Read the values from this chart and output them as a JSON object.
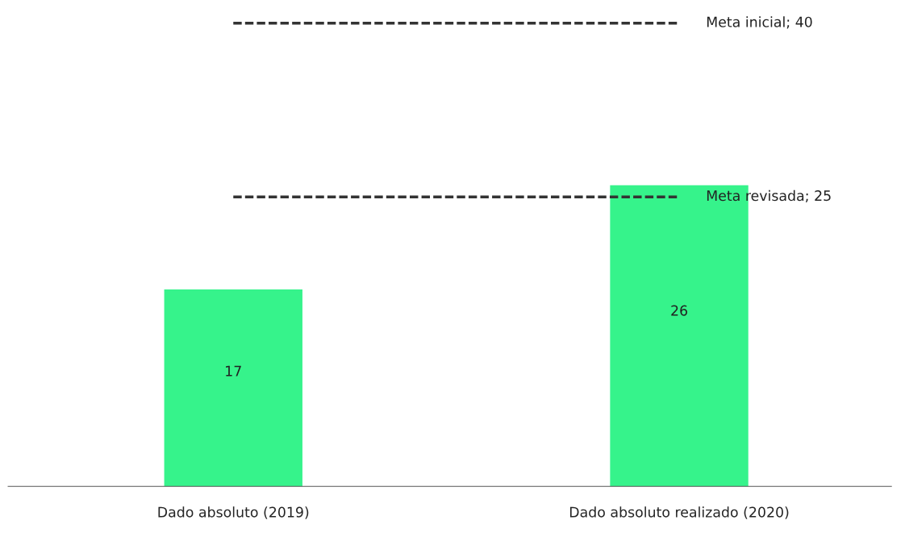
{
  "chart_data": {
    "type": "bar",
    "categories": [
      "Dado absoluto (2019)",
      "Dado absoluto realizado (2020)"
    ],
    "values": [
      17,
      26
    ],
    "color": "#36f38b",
    "tick_labels": "x",
    "grid": false,
    "legend": false,
    "data_labels": true,
    "ref_lines": [
      {
        "axis": "y",
        "value": 40,
        "label": "Meta inicial; 40",
        "color": "#333333",
        "line_style": "dashed"
      },
      {
        "axis": "y",
        "value": 25,
        "label": "Meta revisada; 25",
        "color": "#333333",
        "line_style": "dashed"
      }
    ]
  }
}
